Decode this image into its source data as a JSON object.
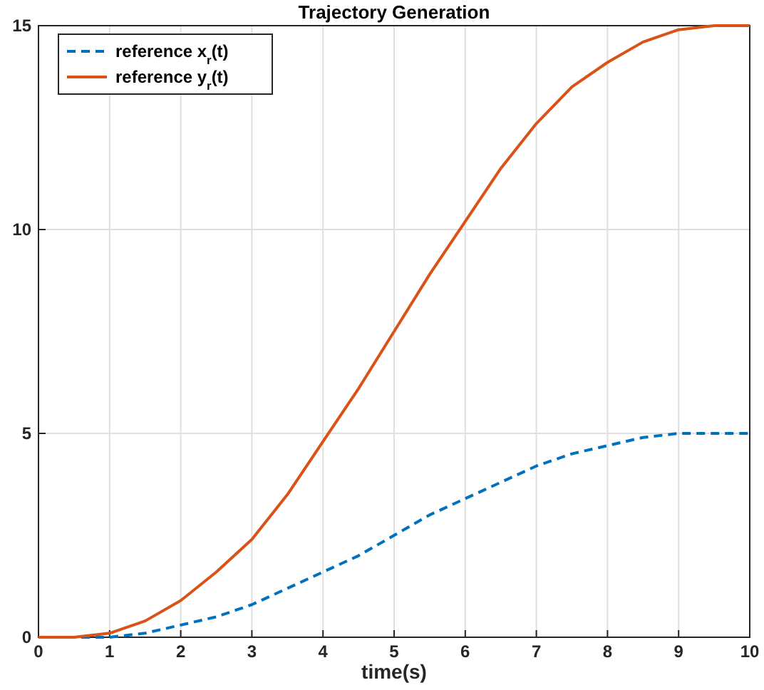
{
  "chart_data": {
    "type": "line",
    "title": "Trajectory Generation",
    "xlabel": "time(s)",
    "x": [
      0,
      0.5,
      1,
      1.5,
      2,
      2.5,
      3,
      3.5,
      4,
      4.5,
      5,
      5.5,
      6,
      6.5,
      7,
      7.5,
      8,
      8.5,
      9,
      9.5,
      10
    ],
    "series": [
      {
        "name": "reference x$_{r}$(t)",
        "color": "#0072bd",
        "line_style": "dashed",
        "values": [
          0,
          0,
          0,
          0.1,
          0.3,
          0.5,
          0.8,
          1.2,
          1.6,
          2,
          2.5,
          3,
          3.4,
          3.8,
          4.2,
          4.5,
          4.7,
          4.9,
          5,
          5,
          5
        ]
      },
      {
        "name": "reference y$_{r}$(t)",
        "color": "#d95319",
        "line_style": "solid",
        "values": [
          0,
          0,
          0.1,
          0.4,
          0.9,
          1.6,
          2.4,
          3.5,
          4.8,
          6.1,
          7.5,
          8.9,
          10.2,
          11.5,
          12.6,
          13.5,
          14.1,
          14.6,
          14.9,
          15,
          15
        ]
      }
    ],
    "xlim": [
      0,
      10
    ],
    "xticks": [
      0,
      1,
      2,
      3,
      4,
      5,
      6,
      7,
      8,
      9,
      10
    ],
    "ylim": [
      0,
      15
    ],
    "yticks": [
      0,
      5,
      10,
      15
    ],
    "grid": true,
    "legend": "top left"
  }
}
